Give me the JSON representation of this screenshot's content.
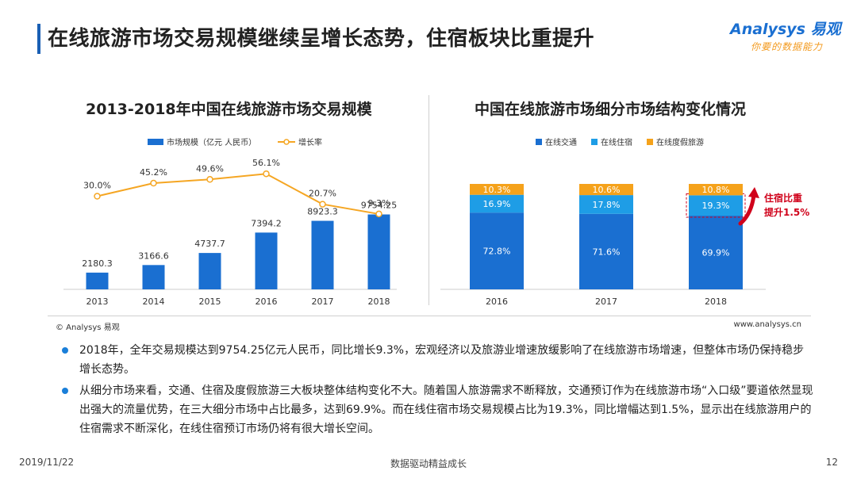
{
  "page": {
    "title": "在线旅游市场交易规模继续呈增长态势，住宿板块比重提升",
    "logo_main": "Analysys 易观",
    "logo_sub": "你要的数据能力",
    "source": "© Analysys 易观",
    "website": "www.analysys.cn",
    "footer_date": "2019/11/22",
    "footer_slogan": "数据驱动精益成长",
    "page_number": "12"
  },
  "bullets": [
    "2018年，全年交易规模达到9754.25亿元人民币，同比增长9.3%，宏观经济以及旅游业增速放缓影响了在线旅游市场增速，但整体市场仍保持稳步增长态势。",
    "从细分市场来看，交通、住宿及度假旅游三大板块整体结构变化不大。随着国人旅游需求不断释放，交通预订作为在线旅游市场“入口级”要道依然显现出强大的流量优势，在三大细分市场中占比最多，达到69.9%。而在线住宿市场交易规模占比为19.3%，同比增幅达到1.5%，显示出在线旅游用户的住宿需求不断深化，在线住宿预订市场仍将有很大增长空间。"
  ],
  "chart_data": [
    {
      "type": "bar",
      "title": "2013-2018年中国在线旅游市场交易规模",
      "categories": [
        "2013",
        "2014",
        "2015",
        "2016",
        "2017",
        "2018"
      ],
      "series": [
        {
          "name": "市场规模（亿元 人民币）",
          "type": "bar",
          "color": "#1a6fd1",
          "values": [
            2180.3,
            3166.6,
            4737.7,
            7394.2,
            8923.3,
            9754.25
          ],
          "labels": [
            "2180.3",
            "3166.6",
            "4737.7",
            "7394.2",
            "8923.3",
            "9754.25"
          ]
        },
        {
          "name": "增长率",
          "type": "line",
          "color": "#f5a623",
          "values": [
            30.0,
            45.2,
            49.6,
            56.1,
            20.7,
            9.3
          ],
          "labels": [
            "30.0%",
            "45.2%",
            "49.6%",
            "56.1%",
            "20.7%",
            "9.3%"
          ]
        }
      ],
      "legend_position": "top-center",
      "grid": false
    },
    {
      "type": "bar",
      "stacked": true,
      "percent": true,
      "title": "中国在线旅游市场细分市场结构变化情况",
      "categories": [
        "2016",
        "2017",
        "2018"
      ],
      "series": [
        {
          "name": "在线交通",
          "color": "#1a6fd1",
          "values": [
            72.8,
            71.6,
            69.9
          ],
          "labels": [
            "72.8%",
            "71.6%",
            "69.9%"
          ]
        },
        {
          "name": "在线住宿",
          "color": "#1e9de6",
          "values": [
            16.9,
            17.8,
            19.3
          ],
          "labels": [
            "16.9%",
            "17.8%",
            "19.3%"
          ]
        },
        {
          "name": "在线度假旅游",
          "color": "#f5a21b",
          "values": [
            10.3,
            10.6,
            10.8
          ],
          "labels": [
            "10.3%",
            "10.6%",
            "10.8%"
          ]
        }
      ],
      "legend_position": "top-center",
      "annotation": {
        "text_line1": "住宿比重",
        "text_line2": "提升1.5%",
        "color": "#d0021b"
      }
    }
  ]
}
